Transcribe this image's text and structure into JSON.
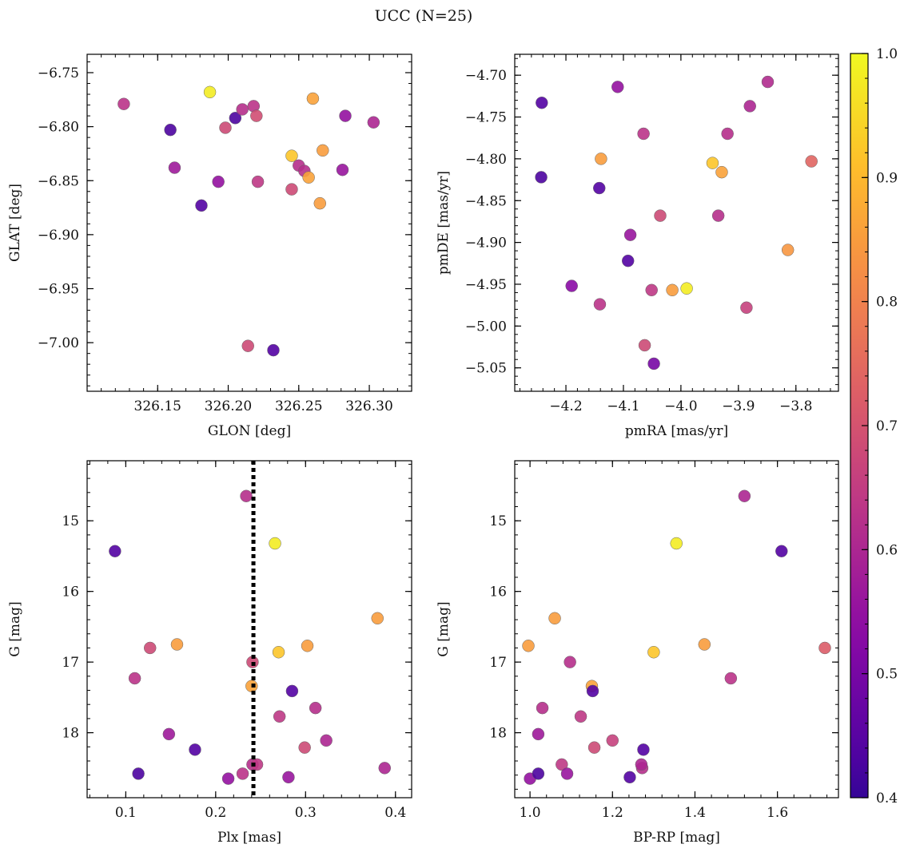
{
  "figure": {
    "title": "UCC (N=25)",
    "colorbar_ticks": [
      "0.4",
      "0.5",
      "0.6",
      "0.7",
      "0.8",
      "0.9",
      "1.0"
    ],
    "colormap": "plasma"
  },
  "chart_data": [
    {
      "type": "scatter",
      "id": "glon-glat",
      "xlabel": "GLON [deg]",
      "ylabel": "GLAT [deg]",
      "xlim": [
        326.1,
        326.33
      ],
      "ylim": [
        -7.045,
        -6.733
      ],
      "xticks": [
        326.15,
        326.2,
        326.25,
        326.3
      ],
      "xtick_labels": [
        "326.15",
        "326.20",
        "326.25",
        "326.30"
      ],
      "yticks": [
        -6.75,
        -6.8,
        -6.85,
        -6.9,
        -6.95,
        -7.0
      ],
      "ytick_labels": [
        "−6.75",
        "−6.80",
        "−6.85",
        "−6.90",
        "−6.95",
        "−7.00"
      ],
      "points": [
        {
          "x": 326.126,
          "y": -6.779,
          "c": 0.63
        },
        {
          "x": 326.159,
          "y": -6.803,
          "c": 0.43
        },
        {
          "x": 326.162,
          "y": -6.838,
          "c": 0.57
        },
        {
          "x": 326.181,
          "y": -6.873,
          "c": 0.44
        },
        {
          "x": 326.187,
          "y": -6.768,
          "c": 0.98
        },
        {
          "x": 326.193,
          "y": -6.851,
          "c": 0.55
        },
        {
          "x": 326.198,
          "y": -6.801,
          "c": 0.68
        },
        {
          "x": 326.205,
          "y": -6.792,
          "c": 0.43
        },
        {
          "x": 326.21,
          "y": -6.784,
          "c": 0.62
        },
        {
          "x": 326.214,
          "y": -7.003,
          "c": 0.68
        },
        {
          "x": 326.218,
          "y": -6.781,
          "c": 0.63
        },
        {
          "x": 326.22,
          "y": -6.79,
          "c": 0.69
        },
        {
          "x": 326.221,
          "y": -6.851,
          "c": 0.64
        },
        {
          "x": 326.232,
          "y": -7.007,
          "c": 0.44
        },
        {
          "x": 326.245,
          "y": -6.827,
          "c": 0.92
        },
        {
          "x": 326.245,
          "y": -6.858,
          "c": 0.68
        },
        {
          "x": 326.25,
          "y": -6.836,
          "c": 0.62
        },
        {
          "x": 326.254,
          "y": -6.841,
          "c": 0.62
        },
        {
          "x": 326.257,
          "y": -6.847,
          "c": 0.86
        },
        {
          "x": 326.26,
          "y": -6.774,
          "c": 0.86
        },
        {
          "x": 326.265,
          "y": -6.871,
          "c": 0.85
        },
        {
          "x": 326.267,
          "y": -6.822,
          "c": 0.85
        },
        {
          "x": 326.281,
          "y": -6.84,
          "c": 0.56
        },
        {
          "x": 326.283,
          "y": -6.79,
          "c": 0.55
        },
        {
          "x": 326.303,
          "y": -6.796,
          "c": 0.6
        }
      ]
    },
    {
      "type": "scatter",
      "id": "pmra-pmde",
      "xlabel": "pmRA [mas/yr]",
      "ylabel": "pmDE [mas/yr]",
      "xlim": [
        -4.289,
        -3.726
      ],
      "ylim": [
        -5.078,
        -4.675
      ],
      "xticks": [
        -4.2,
        -4.1,
        -4.0,
        -3.9,
        -3.8
      ],
      "xtick_labels": [
        "−4.2",
        "−4.1",
        "−4.0",
        "−3.9",
        "−3.8"
      ],
      "yticks": [
        -4.7,
        -4.75,
        -4.8,
        -4.85,
        -4.9,
        -4.95,
        -5.0,
        -5.05
      ],
      "ytick_labels": [
        "−4.70",
        "−4.75",
        "−4.80",
        "−4.85",
        "−4.90",
        "−4.95",
        "−5.00",
        "−5.05"
      ],
      "points": [
        {
          "x": -4.242,
          "y": -4.733,
          "c": 0.44
        },
        {
          "x": -4.243,
          "y": -4.822,
          "c": 0.43
        },
        {
          "x": -4.19,
          "y": -4.952,
          "c": 0.53
        },
        {
          "x": -4.142,
          "y": -4.835,
          "c": 0.44
        },
        {
          "x": -4.139,
          "y": -4.8,
          "c": 0.85
        },
        {
          "x": -4.141,
          "y": -4.974,
          "c": 0.63
        },
        {
          "x": -4.11,
          "y": -4.714,
          "c": 0.55
        },
        {
          "x": -4.092,
          "y": -4.922,
          "c": 0.44
        },
        {
          "x": -4.088,
          "y": -4.891,
          "c": 0.56
        },
        {
          "x": -4.065,
          "y": -4.77,
          "c": 0.63
        },
        {
          "x": -4.063,
          "y": -5.023,
          "c": 0.68
        },
        {
          "x": -4.051,
          "y": -4.957,
          "c": 0.64
        },
        {
          "x": -4.047,
          "y": -5.045,
          "c": 0.5
        },
        {
          "x": -4.036,
          "y": -4.868,
          "c": 0.68
        },
        {
          "x": -4.015,
          "y": -4.957,
          "c": 0.85
        },
        {
          "x": -3.99,
          "y": -4.955,
          "c": 0.98
        },
        {
          "x": -3.945,
          "y": -4.805,
          "c": 0.92
        },
        {
          "x": -3.935,
          "y": -4.868,
          "c": 0.62
        },
        {
          "x": -3.929,
          "y": -4.816,
          "c": 0.86
        },
        {
          "x": -3.919,
          "y": -4.77,
          "c": 0.62
        },
        {
          "x": -3.886,
          "y": -4.978,
          "c": 0.66
        },
        {
          "x": -3.88,
          "y": -4.737,
          "c": 0.6
        },
        {
          "x": -3.849,
          "y": -4.708,
          "c": 0.61
        },
        {
          "x": -3.814,
          "y": -4.909,
          "c": 0.84
        },
        {
          "x": -3.773,
          "y": -4.803,
          "c": 0.74
        }
      ]
    },
    {
      "type": "scatter",
      "id": "plx-g",
      "xlabel": "Plx [mas]",
      "ylabel": "G [mag]",
      "xlim": [
        0.057,
        0.418
      ],
      "ylim": [
        18.92,
        14.15
      ],
      "xticks": [
        0.1,
        0.2,
        0.3,
        0.4
      ],
      "xtick_labels": [
        "0.1",
        "0.2",
        "0.3",
        "0.4"
      ],
      "yticks": [
        15,
        16,
        17,
        18
      ],
      "ytick_labels": [
        "15",
        "16",
        "17",
        "18"
      ],
      "vline": {
        "x": 0.242,
        "style": "dotted"
      },
      "points": [
        {
          "x": 0.088,
          "y": 15.43,
          "c": 0.44
        },
        {
          "x": 0.11,
          "y": 17.23,
          "c": 0.63
        },
        {
          "x": 0.114,
          "y": 18.58,
          "c": 0.43
        },
        {
          "x": 0.127,
          "y": 16.8,
          "c": 0.68
        },
        {
          "x": 0.148,
          "y": 18.02,
          "c": 0.57
        },
        {
          "x": 0.157,
          "y": 16.75,
          "c": 0.85
        },
        {
          "x": 0.177,
          "y": 18.24,
          "c": 0.44
        },
        {
          "x": 0.214,
          "y": 18.65,
          "c": 0.55
        },
        {
          "x": 0.23,
          "y": 18.58,
          "c": 0.63
        },
        {
          "x": 0.234,
          "y": 14.65,
          "c": 0.62
        },
        {
          "x": 0.241,
          "y": 17.0,
          "c": 0.68
        },
        {
          "x": 0.24,
          "y": 17.34,
          "c": 0.86
        },
        {
          "x": 0.241,
          "y": 18.45,
          "c": 0.62
        },
        {
          "x": 0.246,
          "y": 18.45,
          "c": 0.64
        },
        {
          "x": 0.266,
          "y": 15.32,
          "c": 0.98
        },
        {
          "x": 0.27,
          "y": 16.86,
          "c": 0.92
        },
        {
          "x": 0.271,
          "y": 17.77,
          "c": 0.64
        },
        {
          "x": 0.281,
          "y": 18.63,
          "c": 0.56
        },
        {
          "x": 0.285,
          "y": 17.41,
          "c": 0.44
        },
        {
          "x": 0.299,
          "y": 18.21,
          "c": 0.68
        },
        {
          "x": 0.302,
          "y": 16.77,
          "c": 0.85
        },
        {
          "x": 0.311,
          "y": 17.65,
          "c": 0.62
        },
        {
          "x": 0.323,
          "y": 18.11,
          "c": 0.6
        },
        {
          "x": 0.38,
          "y": 16.38,
          "c": 0.85
        },
        {
          "x": 0.388,
          "y": 18.5,
          "c": 0.6
        }
      ]
    },
    {
      "type": "scatter",
      "id": "bprp-g",
      "xlabel": "BP-RP [mag]",
      "ylabel": "G [mag]",
      "xlim": [
        0.963,
        1.748
      ],
      "ylim": [
        18.92,
        14.15
      ],
      "xticks": [
        1.0,
        1.2,
        1.4,
        1.6
      ],
      "xtick_labels": [
        "1.0",
        "1.2",
        "1.4",
        "1.6"
      ],
      "yticks": [
        15,
        16,
        17,
        18
      ],
      "ytick_labels": [
        "15",
        "16",
        "17",
        "18"
      ],
      "points": [
        {
          "x": 0.996,
          "y": 16.77,
          "c": 0.85
        },
        {
          "x": 1.0,
          "y": 18.65,
          "c": 0.55
        },
        {
          "x": 1.02,
          "y": 18.58,
          "c": 0.43
        },
        {
          "x": 1.02,
          "y": 18.02,
          "c": 0.57
        },
        {
          "x": 1.03,
          "y": 17.65,
          "c": 0.62
        },
        {
          "x": 1.06,
          "y": 16.38,
          "c": 0.85
        },
        {
          "x": 1.077,
          "y": 18.45,
          "c": 0.64
        },
        {
          "x": 1.09,
          "y": 18.58,
          "c": 0.56
        },
        {
          "x": 1.097,
          "y": 17.0,
          "c": 0.62
        },
        {
          "x": 1.123,
          "y": 17.77,
          "c": 0.64
        },
        {
          "x": 1.15,
          "y": 17.34,
          "c": 0.86
        },
        {
          "x": 1.152,
          "y": 17.41,
          "c": 0.44
        },
        {
          "x": 1.156,
          "y": 18.21,
          "c": 0.68
        },
        {
          "x": 1.2,
          "y": 18.11,
          "c": 0.66
        },
        {
          "x": 1.242,
          "y": 18.63,
          "c": 0.44
        },
        {
          "x": 1.272,
          "y": 18.5,
          "c": 0.62
        },
        {
          "x": 1.275,
          "y": 18.24,
          "c": 0.44
        },
        {
          "x": 1.3,
          "y": 16.86,
          "c": 0.92
        },
        {
          "x": 1.355,
          "y": 15.32,
          "c": 0.98
        },
        {
          "x": 1.423,
          "y": 16.75,
          "c": 0.85
        },
        {
          "x": 1.487,
          "y": 17.23,
          "c": 0.63
        },
        {
          "x": 1.52,
          "y": 14.65,
          "c": 0.6
        },
        {
          "x": 1.61,
          "y": 15.43,
          "c": 0.44
        },
        {
          "x": 1.715,
          "y": 16.8,
          "c": 0.72
        },
        {
          "x": 1.27,
          "y": 18.45,
          "c": 0.6
        }
      ]
    }
  ]
}
